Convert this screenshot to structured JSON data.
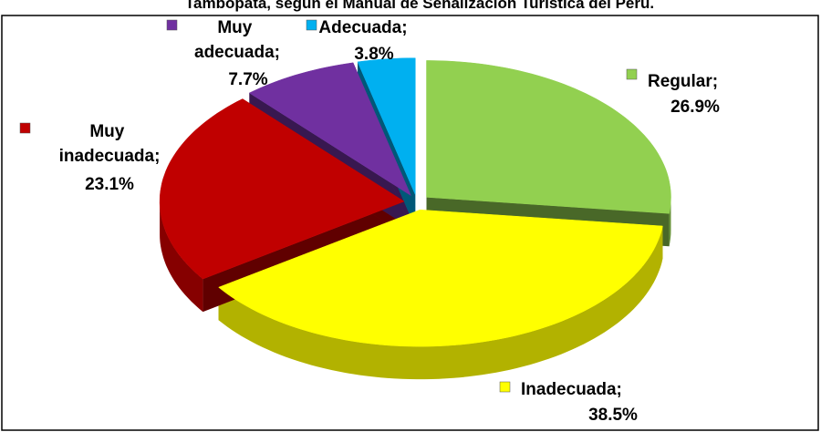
{
  "chart_data": {
    "type": "pie3d",
    "title": "Tambopata, según el Manual de Señalización Turística del Perú.",
    "categories": [
      "Regular",
      "Inadecuada",
      "Muy inadecuada",
      "Muy adecuada",
      "Adecuada"
    ],
    "values": [
      26.9,
      38.5,
      23.1,
      7.7,
      3.8
    ],
    "value_labels": [
      "26.9%",
      "38.5%",
      "23.1%",
      "7.7%",
      "3.8%"
    ],
    "label_separator": ";",
    "colors": [
      "#92d050",
      "#ffff00",
      "#c00000",
      "#7030a0",
      "#00b0f0"
    ]
  }
}
